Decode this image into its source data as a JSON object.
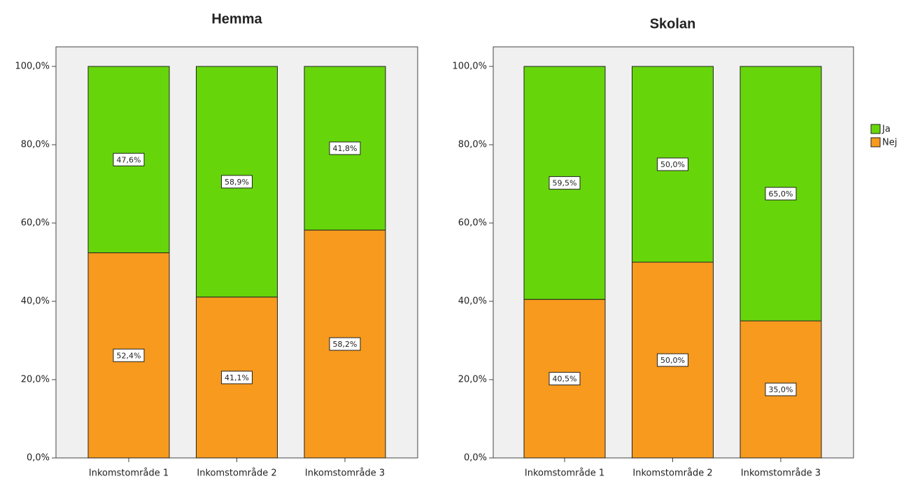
{
  "chart_data": [
    {
      "type": "bar",
      "stacked": true,
      "title": "Hemma",
      "categories": [
        "Inkomstområde 1",
        "Inkomstområde 2",
        "Inkomstområde 3"
      ],
      "series": [
        {
          "values": [
            47.6,
            58.9,
            41.8
          ],
          "value_labels": [
            "47,6%",
            "58,9%",
            "41,8%"
          ]
        },
        {
          "values": [
            52.4,
            41.1,
            58.2
          ],
          "value_labels": [
            "52,4%",
            "41,1%",
            "58,2%"
          ]
        }
      ],
      "ylim": [
        0,
        105
      ],
      "yticks": [
        {
          "value": 0,
          "label": "0,0%"
        },
        {
          "value": 20,
          "label": "20,0%"
        },
        {
          "value": 40,
          "label": "40,0%"
        },
        {
          "value": 60,
          "label": "60,0%"
        },
        {
          "value": 80,
          "label": "80,0%"
        },
        {
          "value": 100,
          "label": "100,0%"
        }
      ],
      "grid": false
    },
    {
      "type": "bar",
      "stacked": true,
      "title": "Skolan",
      "categories": [
        "Inkomstområde 1",
        "Inkomstområde 2",
        "Inkomstområde 3"
      ],
      "series": [
        {
          "values": [
            59.5,
            50.0,
            65.0
          ],
          "value_labels": [
            "59,5%",
            "50,0%",
            "65,0%"
          ]
        },
        {
          "values": [
            40.5,
            50.0,
            35.0
          ],
          "value_labels": [
            "40,5%",
            "50,0%",
            "35,0%"
          ]
        }
      ],
      "ylim": [
        0,
        105
      ],
      "yticks": [
        {
          "value": 0,
          "label": "0,0%"
        },
        {
          "value": 20,
          "label": "20,0%"
        },
        {
          "value": 40,
          "label": "40,0%"
        },
        {
          "value": 60,
          "label": "60,0%"
        },
        {
          "value": 80,
          "label": "80,0%"
        },
        {
          "value": 100,
          "label": "100,0%"
        }
      ],
      "grid": false
    }
  ],
  "legend": {
    "position": "right",
    "entries": [
      {
        "name": "Ja",
        "color": "#66d60a"
      },
      {
        "name": "Nej",
        "color": "#f79a1e"
      }
    ]
  }
}
